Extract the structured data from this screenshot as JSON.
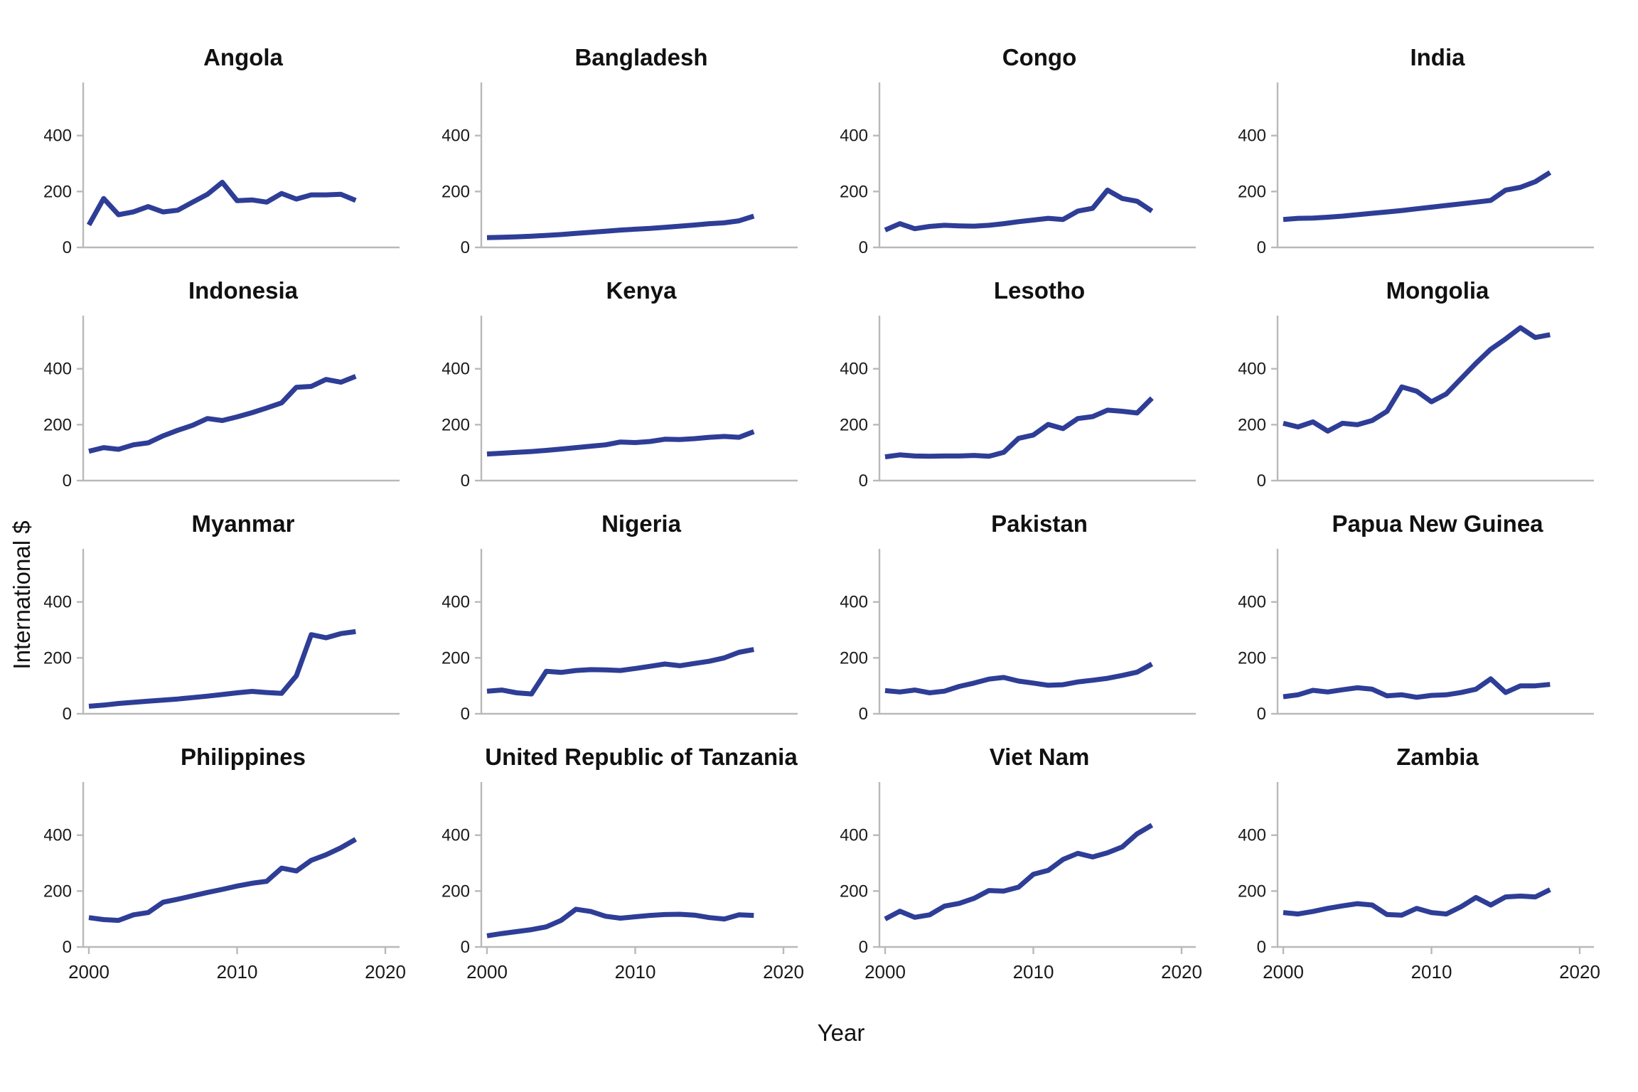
{
  "figure": {
    "y_axis_label": "International $",
    "x_axis_label": "Year"
  },
  "style": {
    "line_color": "#2e3d96",
    "axis_color": "#b9b9b9",
    "text_color": "#1a1a1a",
    "line_width": 7
  },
  "axes": {
    "x_ticks": [
      2000,
      2010,
      2020
    ],
    "y_ticks": [
      0,
      200,
      400
    ],
    "x_domain": [
      2000,
      2020
    ],
    "y_domain": [
      0,
      585
    ],
    "grid": false
  },
  "chart_data": [
    {
      "type": "line",
      "title": "Angola",
      "x_start": 2000,
      "x": [
        2000,
        2001,
        2002,
        2003,
        2004,
        2005,
        2006,
        2007,
        2008,
        2009,
        2010,
        2011,
        2012,
        2013,
        2014,
        2015,
        2016,
        2017,
        2018
      ],
      "values": [
        80,
        175,
        117,
        127,
        146,
        127,
        133,
        162,
        190,
        233,
        167,
        170,
        162,
        193,
        173,
        188,
        188,
        190,
        168
      ]
    },
    {
      "type": "line",
      "title": "Bangladesh",
      "x_start": 2000,
      "x": [
        2000,
        2001,
        2002,
        2003,
        2004,
        2005,
        2006,
        2007,
        2008,
        2009,
        2010,
        2011,
        2012,
        2013,
        2014,
        2015,
        2016,
        2017,
        2018
      ],
      "values": [
        35,
        36,
        38,
        40,
        43,
        46,
        50,
        54,
        58,
        62,
        65,
        68,
        72,
        76,
        80,
        85,
        88,
        95,
        112
      ]
    },
    {
      "type": "line",
      "title": "Congo",
      "x_start": 2000,
      "x": [
        2000,
        2001,
        2002,
        2003,
        2004,
        2005,
        2006,
        2007,
        2008,
        2009,
        2010,
        2011,
        2012,
        2013,
        2014,
        2015,
        2016,
        2017,
        2018
      ],
      "values": [
        62,
        85,
        67,
        75,
        79,
        77,
        76,
        79,
        85,
        92,
        98,
        104,
        100,
        130,
        140,
        205,
        175,
        165,
        130
      ]
    },
    {
      "type": "line",
      "title": "India",
      "x_start": 2000,
      "x": [
        2000,
        2001,
        2002,
        2003,
        2004,
        2005,
        2006,
        2007,
        2008,
        2009,
        2010,
        2011,
        2012,
        2013,
        2014,
        2015,
        2016,
        2017,
        2018
      ],
      "values": [
        100,
        104,
        105,
        108,
        112,
        117,
        122,
        127,
        132,
        138,
        144,
        150,
        156,
        162,
        168,
        205,
        215,
        235,
        268
      ]
    },
    {
      "type": "line",
      "title": "Indonesia",
      "x_start": 2000,
      "x": [
        2000,
        2001,
        2002,
        2003,
        2004,
        2005,
        2006,
        2007,
        2008,
        2009,
        2010,
        2011,
        2012,
        2013,
        2014,
        2015,
        2016,
        2017,
        2018
      ],
      "values": [
        105,
        118,
        112,
        128,
        135,
        160,
        180,
        198,
        222,
        215,
        228,
        243,
        260,
        278,
        334,
        337,
        362,
        352,
        373
      ]
    },
    {
      "type": "line",
      "title": "Kenya",
      "x_start": 2000,
      "x": [
        2000,
        2001,
        2002,
        2003,
        2004,
        2005,
        2006,
        2007,
        2008,
        2009,
        2010,
        2011,
        2012,
        2013,
        2014,
        2015,
        2016,
        2017,
        2018
      ],
      "values": [
        95,
        98,
        101,
        104,
        108,
        113,
        118,
        123,
        128,
        138,
        136,
        140,
        148,
        147,
        150,
        155,
        158,
        155,
        175
      ]
    },
    {
      "type": "line",
      "title": "Lesotho",
      "x_start": 2000,
      "x": [
        2000,
        2001,
        2002,
        2003,
        2004,
        2005,
        2006,
        2007,
        2008,
        2009,
        2010,
        2011,
        2012,
        2013,
        2014,
        2015,
        2016,
        2017,
        2018
      ],
      "values": [
        85,
        92,
        88,
        87,
        88,
        88,
        90,
        87,
        101,
        151,
        163,
        201,
        186,
        222,
        229,
        252,
        248,
        242,
        295
      ]
    },
    {
      "type": "line",
      "title": "Mongolia",
      "x_start": 2000,
      "x": [
        2000,
        2001,
        2002,
        2003,
        2004,
        2005,
        2006,
        2007,
        2008,
        2009,
        2010,
        2011,
        2012,
        2013,
        2014,
        2015,
        2016,
        2017,
        2018
      ],
      "values": [
        205,
        192,
        210,
        177,
        205,
        200,
        215,
        248,
        335,
        320,
        282,
        310,
        365,
        420,
        470,
        507,
        547,
        512,
        522
      ]
    },
    {
      "type": "line",
      "title": "Myanmar",
      "x_start": 2000,
      "x": [
        2000,
        2001,
        2002,
        2003,
        2004,
        2005,
        2006,
        2007,
        2008,
        2009,
        2010,
        2011,
        2012,
        2013,
        2014,
        2015,
        2016,
        2017,
        2018
      ],
      "values": [
        27,
        31,
        37,
        41,
        45,
        49,
        53,
        58,
        63,
        69,
        75,
        80,
        76,
        73,
        136,
        283,
        272,
        287,
        294
      ]
    },
    {
      "type": "line",
      "title": "Nigeria",
      "x_start": 2000,
      "x": [
        2000,
        2001,
        2002,
        2003,
        2004,
        2005,
        2006,
        2007,
        2008,
        2009,
        2010,
        2011,
        2012,
        2013,
        2014,
        2015,
        2016,
        2017,
        2018
      ],
      "values": [
        81,
        85,
        75,
        71,
        152,
        148,
        155,
        158,
        157,
        155,
        162,
        170,
        178,
        172,
        180,
        188,
        200,
        220,
        230
      ]
    },
    {
      "type": "line",
      "title": "Pakistan",
      "x_start": 2000,
      "x": [
        2000,
        2001,
        2002,
        2003,
        2004,
        2005,
        2006,
        2007,
        2008,
        2009,
        2010,
        2011,
        2012,
        2013,
        2014,
        2015,
        2016,
        2017,
        2018
      ],
      "values": [
        83,
        78,
        85,
        75,
        81,
        98,
        110,
        124,
        130,
        117,
        110,
        102,
        104,
        114,
        120,
        127,
        137,
        149,
        178
      ]
    },
    {
      "type": "line",
      "title": "Papua New Guinea",
      "x_start": 2000,
      "x": [
        2000,
        2001,
        2002,
        2003,
        2004,
        2005,
        2006,
        2007,
        2008,
        2009,
        2010,
        2011,
        2012,
        2013,
        2014,
        2015,
        2016,
        2017,
        2018
      ],
      "values": [
        61,
        68,
        84,
        78,
        86,
        93,
        88,
        64,
        68,
        59,
        66,
        68,
        76,
        88,
        125,
        76,
        100,
        100,
        105
      ]
    },
    {
      "type": "line",
      "title": "Philippines",
      "x_start": 2000,
      "x": [
        2000,
        2001,
        2002,
        2003,
        2004,
        2005,
        2006,
        2007,
        2008,
        2009,
        2010,
        2011,
        2012,
        2013,
        2014,
        2015,
        2016,
        2017,
        2018
      ],
      "values": [
        105,
        98,
        95,
        115,
        123,
        160,
        171,
        183,
        195,
        206,
        218,
        228,
        235,
        282,
        272,
        310,
        330,
        355,
        385
      ]
    },
    {
      "type": "line",
      "title": "United Republic of Tanzania",
      "x_start": 2000,
      "x": [
        2000,
        2001,
        2002,
        2003,
        2004,
        2005,
        2006,
        2007,
        2008,
        2009,
        2010,
        2011,
        2012,
        2013,
        2014,
        2015,
        2016,
        2017,
        2018
      ],
      "values": [
        40,
        48,
        55,
        62,
        72,
        95,
        135,
        127,
        110,
        103,
        108,
        113,
        116,
        117,
        114,
        105,
        100,
        115,
        113
      ]
    },
    {
      "type": "line",
      "title": "Viet Nam",
      "x_start": 2000,
      "x": [
        2000,
        2001,
        2002,
        2003,
        2004,
        2005,
        2006,
        2007,
        2008,
        2009,
        2010,
        2011,
        2012,
        2013,
        2014,
        2015,
        2016,
        2017,
        2018
      ],
      "values": [
        100,
        128,
        106,
        115,
        146,
        156,
        174,
        202,
        200,
        214,
        260,
        274,
        313,
        335,
        322,
        337,
        358,
        405,
        436
      ]
    },
    {
      "type": "line",
      "title": "Zambia",
      "x_start": 2000,
      "x": [
        2000,
        2001,
        2002,
        2003,
        2004,
        2005,
        2006,
        2007,
        2008,
        2009,
        2010,
        2011,
        2012,
        2013,
        2014,
        2015,
        2016,
        2017,
        2018
      ],
      "values": [
        123,
        118,
        127,
        138,
        147,
        155,
        150,
        116,
        114,
        138,
        123,
        118,
        144,
        177,
        150,
        179,
        182,
        179,
        205
      ]
    }
  ]
}
